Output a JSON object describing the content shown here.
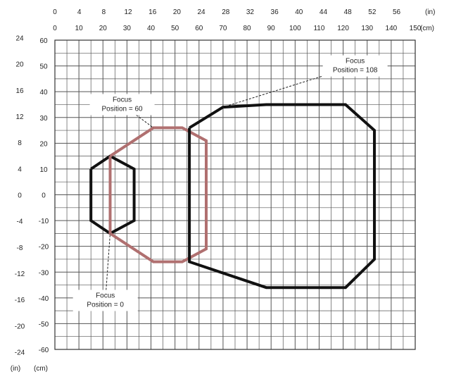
{
  "chart_data": {
    "type": "line",
    "title": "",
    "grid": true,
    "legend": "none",
    "x_axis": {
      "in": {
        "unit_label": "(in)",
        "ticks": [
          0,
          4,
          8,
          12,
          16,
          20,
          24,
          28,
          32,
          36,
          40,
          44,
          48,
          52,
          56
        ]
      },
      "cm": {
        "unit_label": "(cm)",
        "ticks": [
          0,
          10,
          20,
          30,
          40,
          50,
          60,
          70,
          80,
          90,
          100,
          110,
          120,
          130,
          140,
          150
        ]
      },
      "range_cm": [
        0,
        150
      ]
    },
    "y_axis": {
      "in": {
        "unit_label": "(in)",
        "ticks": [
          24,
          20,
          16,
          12,
          8,
          4,
          0,
          -4,
          -8,
          -12,
          -16,
          -20,
          -24
        ]
      },
      "cm": {
        "unit_label": "(cm)",
        "ticks": [
          60,
          50,
          40,
          30,
          20,
          10,
          0,
          -10,
          -20,
          -30,
          -40,
          -50,
          -60
        ]
      },
      "range_cm": [
        -60,
        60
      ]
    },
    "series": [
      {
        "color": "#111111",
        "points": [
          [
            15,
            10
          ],
          [
            23,
            15
          ],
          [
            33,
            10
          ],
          [
            33,
            -10
          ],
          [
            23,
            -15
          ],
          [
            15,
            -10
          ],
          [
            15,
            10
          ]
        ]
      },
      {
        "color": "#b07070",
        "points": [
          [
            23,
            15
          ],
          [
            41,
            26
          ],
          [
            53,
            26
          ],
          [
            63,
            21
          ],
          [
            63,
            -21
          ],
          [
            53,
            -26
          ],
          [
            41,
            -26
          ],
          [
            23,
            -15
          ],
          [
            23,
            15
          ]
        ]
      },
      {
        "color": "#111111",
        "points": [
          [
            56,
            26
          ],
          [
            70,
            34
          ],
          [
            88,
            35
          ],
          [
            121,
            35
          ],
          [
            133,
            25
          ],
          [
            133,
            -25
          ],
          [
            121,
            -36
          ],
          [
            88,
            -36
          ],
          [
            56,
            -26
          ],
          [
            56,
            26
          ]
        ]
      }
    ],
    "annotations": [
      {
        "lines": [
          "Focus",
          "Position = 108"
        ],
        "x": 125,
        "y": 50,
        "target": [
          70,
          34
        ]
      },
      {
        "lines": [
          "Focus",
          "Position = 60"
        ],
        "x": 28,
        "y": 35,
        "target": [
          41,
          26
        ]
      },
      {
        "lines": [
          "Focus",
          "Position = 0"
        ],
        "x": 21,
        "y": -41,
        "target": [
          23,
          -15
        ]
      }
    ]
  }
}
